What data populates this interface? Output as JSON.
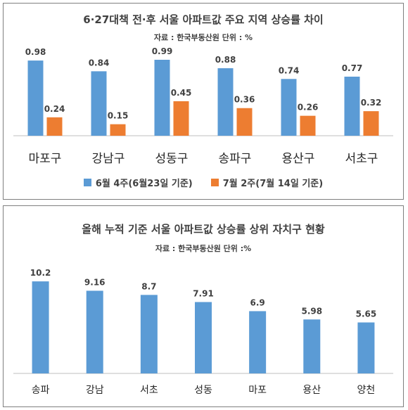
{
  "colors": {
    "series1": "#5b9bd5",
    "series2": "#ed7d31",
    "text": "#404040",
    "axis": "#bfbfbf"
  },
  "panel1": {
    "title": "6·27대책 전·후 서울 아파트값 주요 지역 상승률 차이",
    "source": "자료 : 한국부동산원   단위 : %"
  },
  "panel2": {
    "title": "올해 누적 기준 서울 아파트값 상승률 상위 자치구 현황",
    "source": "자료 : 한국부동산원   단위 :%"
  },
  "chart_data": [
    {
      "type": "bar",
      "title": "6·27대책 전·후 서울 아파트값 주요 지역 상승률 차이",
      "categories": [
        "마포구",
        "강남구",
        "성동구",
        "송파구",
        "용산구",
        "서초구"
      ],
      "series": [
        {
          "name": "6월 4주(6월23일 기준)",
          "values": [
            0.98,
            0.84,
            0.99,
            0.88,
            0.74,
            0.77
          ],
          "labels": [
            "0.98",
            "0.84",
            "0.99",
            "0.88",
            "0.74",
            "0.77"
          ]
        },
        {
          "name": "7월 2주(7월 14일 기준)",
          "values": [
            0.24,
            0.15,
            0.45,
            0.36,
            0.26,
            0.32
          ],
          "labels": [
            "0.24",
            "0.15",
            "0.45",
            "0.36",
            "0.26",
            "0.32"
          ]
        }
      ],
      "ylim": [
        0,
        1.1
      ],
      "grid": false,
      "legend": "bottom"
    },
    {
      "type": "bar",
      "title": "올해 누적 기준 서울 아파트값 상승률 상위 자치구 현황",
      "categories": [
        "송파",
        "강남",
        "서초",
        "성동",
        "마포",
        "용산",
        "양천"
      ],
      "values": [
        10.2,
        9.16,
        8.7,
        7.91,
        6.9,
        5.98,
        5.65
      ],
      "labels": [
        "10.2",
        "9.16",
        "8.7",
        "7.91",
        "6.9",
        "5.98",
        "5.65"
      ],
      "ylim": [
        0,
        12
      ],
      "grid": false
    }
  ]
}
